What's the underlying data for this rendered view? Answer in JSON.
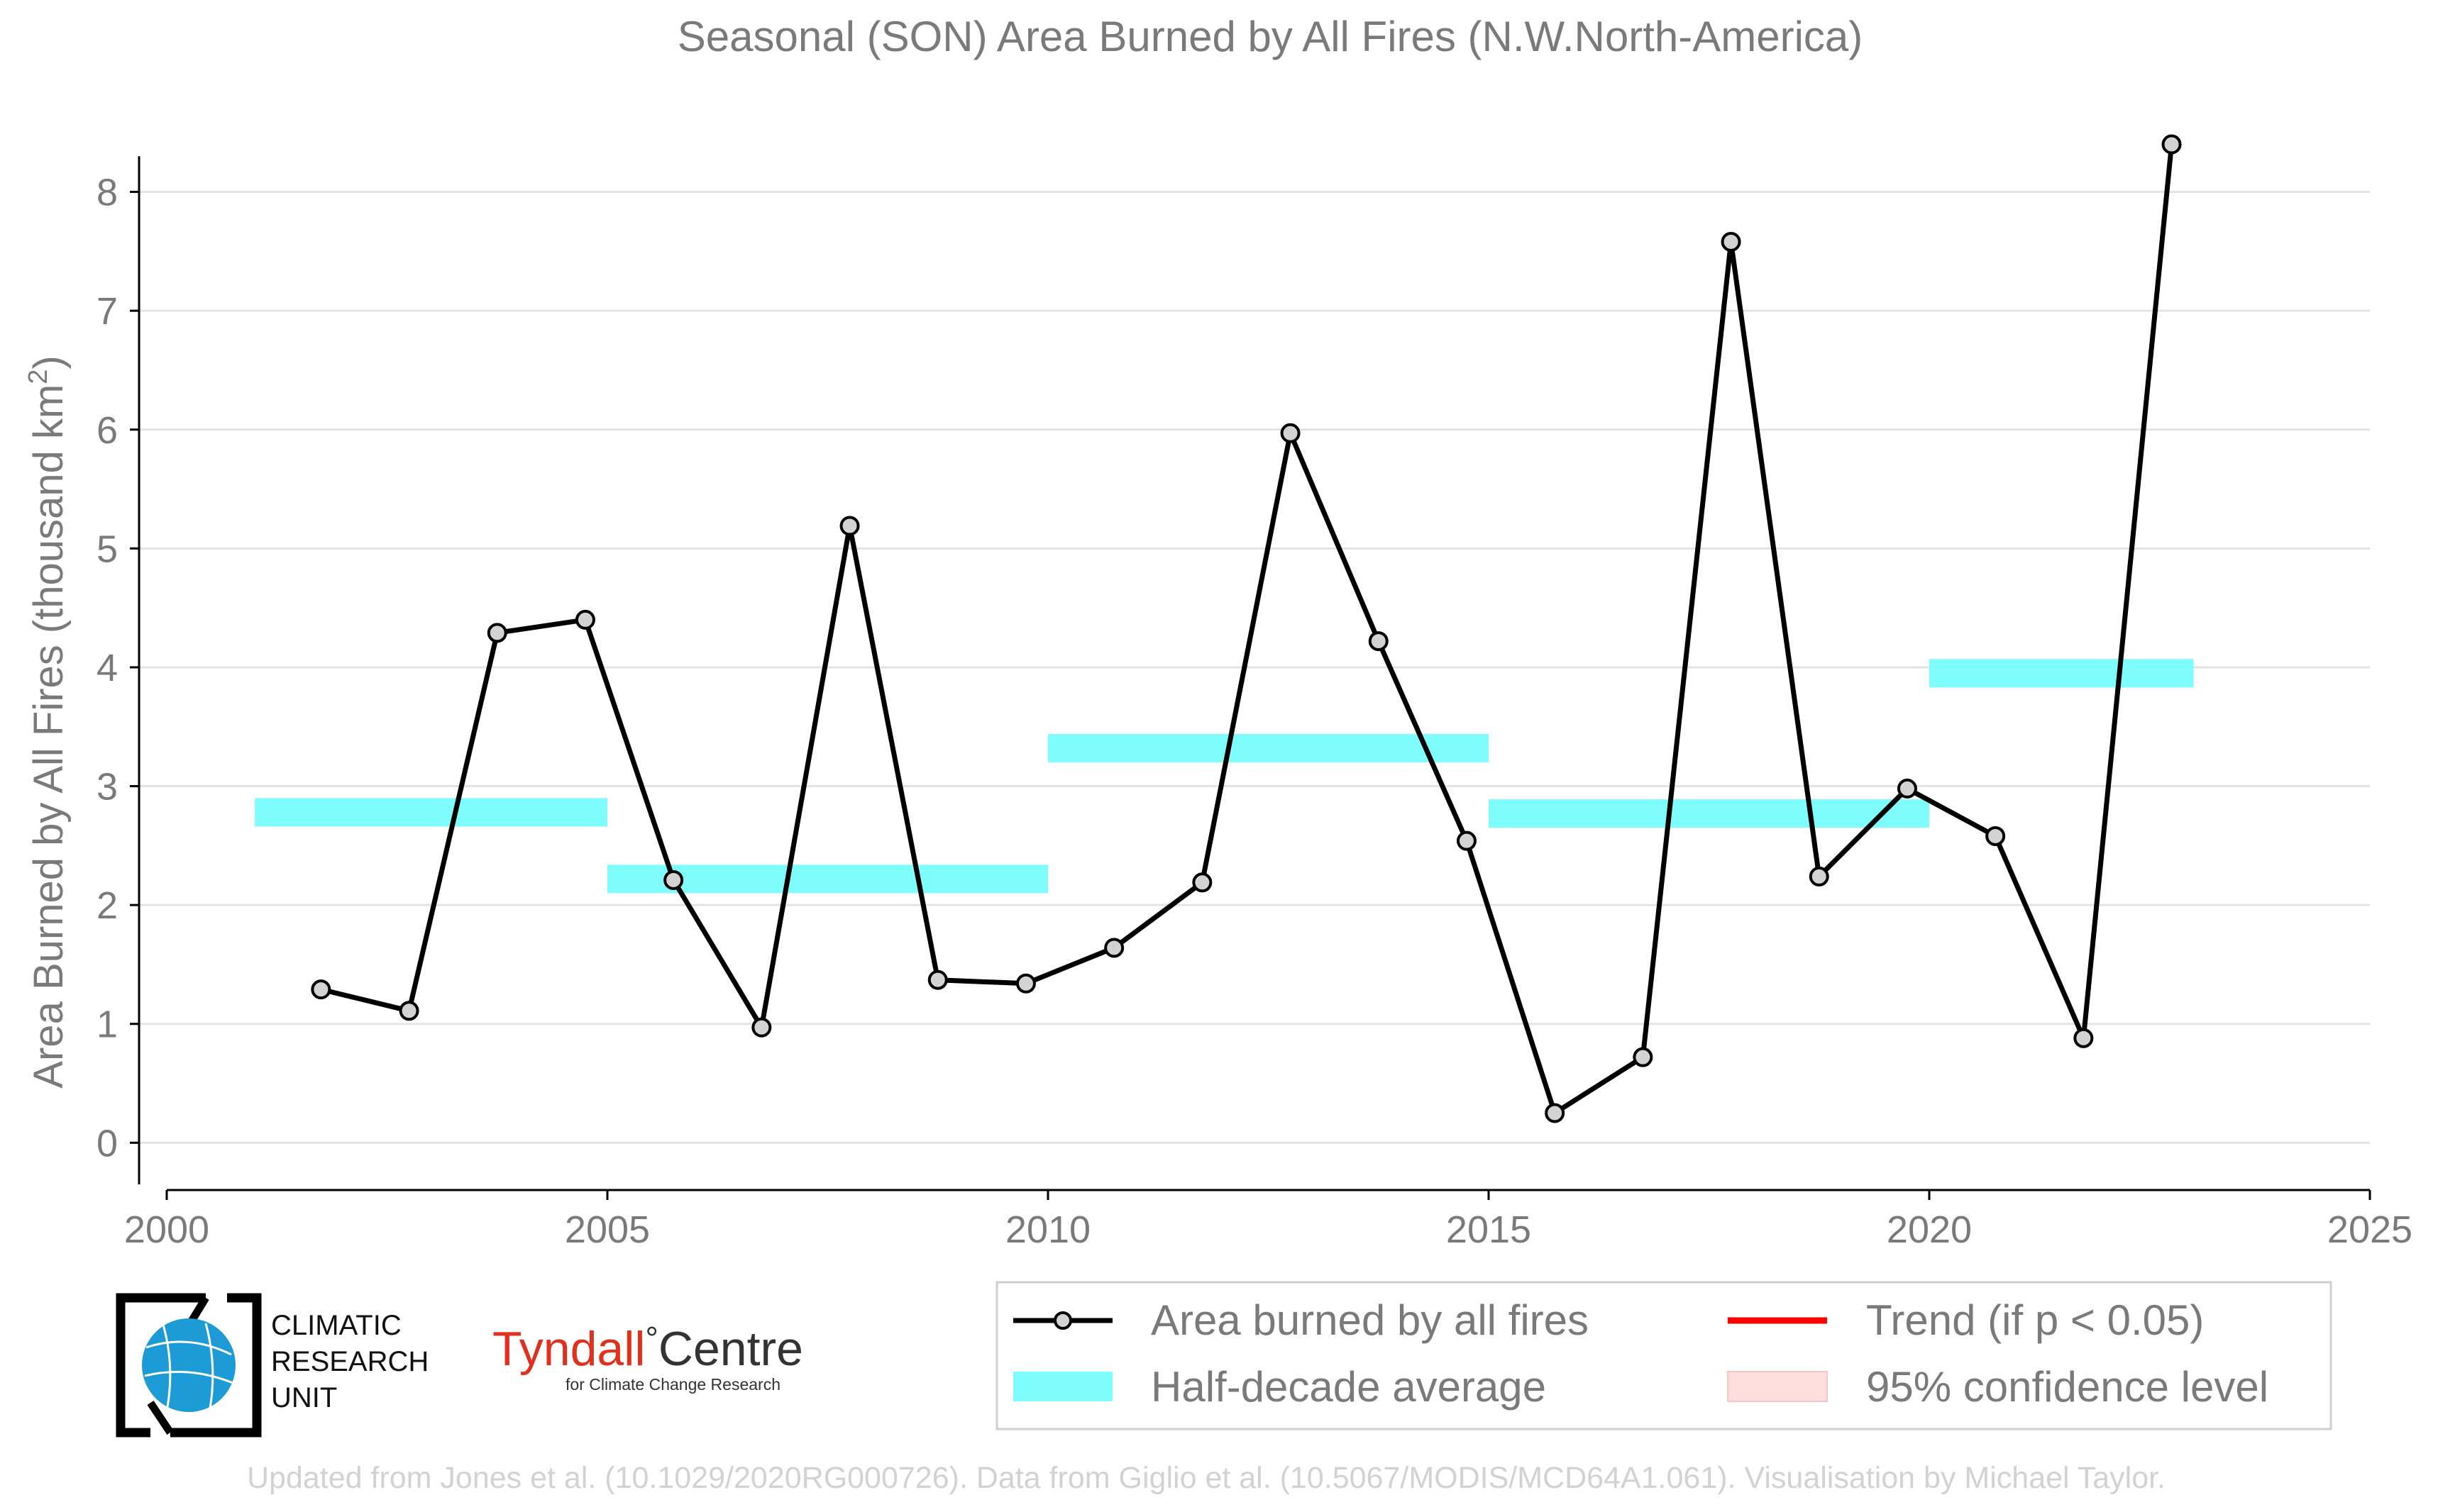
{
  "chart_data": {
    "type": "line",
    "title": "Seasonal (SON) Area Burned by All Fires (N.W.North-America)",
    "ylabel": "Area Burned by All Fires (thousand km",
    "ylabel_sup": "2",
    "ylabel_close": ")",
    "xlim": [
      2000,
      2025
    ],
    "ylim": [
      -0.35,
      8.6
    ],
    "xticks": [
      2000,
      2005,
      2010,
      2015,
      2020,
      2025
    ],
    "yticks": [
      0,
      1,
      2,
      3,
      4,
      5,
      6,
      7,
      8
    ],
    "grid": "horizontal",
    "series": [
      {
        "name": "Area burned by all fires",
        "color": "#000000",
        "marker_color": "#d3d3d3",
        "x": [
          2001.75,
          2002.75,
          2003.75,
          2004.75,
          2005.75,
          2006.75,
          2007.75,
          2008.75,
          2009.75,
          2010.75,
          2011.75,
          2012.75,
          2013.75,
          2014.75,
          2015.75,
          2016.75,
          2017.75,
          2018.75,
          2019.75,
          2020.75,
          2021.75,
          2022.75
        ],
        "y": [
          1.29,
          1.11,
          4.29,
          4.4,
          2.21,
          0.97,
          5.19,
          1.37,
          1.34,
          1.64,
          2.19,
          5.97,
          4.22,
          2.54,
          0.25,
          0.72,
          7.58,
          2.24,
          2.98,
          2.58,
          0.88,
          8.4
        ]
      }
    ],
    "half_decade_average": {
      "name": "Half-decade average",
      "color": "#7ffcfc",
      "segments": [
        {
          "x0": 2001,
          "x1": 2005,
          "y": 2.78
        },
        {
          "x0": 2005,
          "x1": 2010,
          "y": 2.22
        },
        {
          "x0": 2010,
          "x1": 2015,
          "y": 3.32
        },
        {
          "x0": 2015,
          "x1": 2020,
          "y": 2.77
        },
        {
          "x0": 2020,
          "x1": 2023,
          "y": 3.95
        }
      ]
    },
    "legend": {
      "placement": "bottom-right",
      "entries": [
        {
          "label": "Area burned by all fires",
          "color": "#000000"
        },
        {
          "label": "Trend (if p < 0.05)",
          "color": "#ff0000"
        },
        {
          "label": "Half-decade average",
          "color": "#7ffcfc"
        },
        {
          "label": "95% confidence level",
          "color": "#ffdede"
        }
      ]
    }
  },
  "credits": "Updated from Jones et al. (10.1029/2020RG000726). Data from Giglio et al. (10.5067/MODIS/MCD64A1.061). Visualisation by Michael Taylor.",
  "logos": {
    "cru_lines": [
      "CLIMATIC",
      "RESEARCH",
      "UNIT"
    ],
    "tyndall_main": "Tyndall",
    "tyndall_degree": "°",
    "tyndall_centre": "Centre",
    "tyndall_sub": "for Climate Change Research"
  }
}
